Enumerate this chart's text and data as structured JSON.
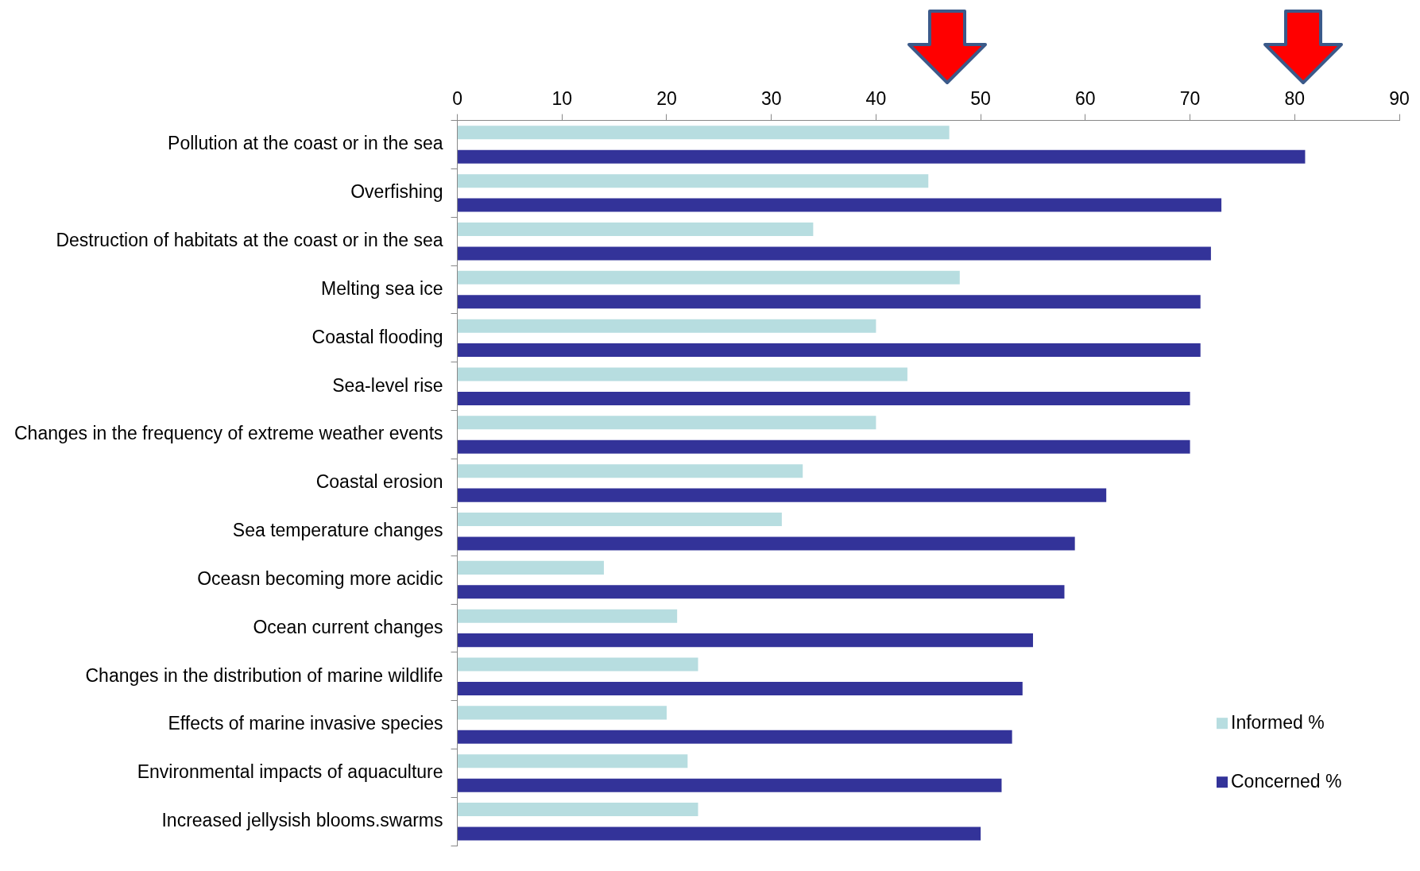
{
  "chart_data": {
    "type": "bar",
    "orientation": "horizontal",
    "categories": [
      "Pollution at the coast or in the sea",
      "Overfishing",
      "Destruction of habitats at the coast or in the sea",
      "Melting sea ice",
      "Coastal flooding",
      "Sea-level rise",
      "Changes in the frequency of extreme weather events",
      "Coastal erosion",
      "Sea temperature changes",
      "Oceasn becoming more acidic",
      "Ocean current changes",
      "Changes in the distribution of marine wildlife",
      "Effects of marine invasive species",
      "Environmental impacts of aquaculture",
      "Increased jellysish blooms.swarms"
    ],
    "series": [
      {
        "name": "Informed %",
        "color": "#b7dde0",
        "values": [
          47,
          45,
          34,
          48,
          40,
          43,
          40,
          33,
          31,
          14,
          21,
          23,
          20,
          22,
          23
        ]
      },
      {
        "name": "Concerned %",
        "color": "#333399",
        "values": [
          81,
          73,
          72,
          71,
          71,
          70,
          70,
          62,
          59,
          58,
          55,
          54,
          53,
          52,
          50
        ]
      }
    ],
    "xlim": [
      0,
      90
    ],
    "xticks": [
      0,
      10,
      20,
      30,
      40,
      50,
      60,
      70,
      80,
      90
    ],
    "grid": false,
    "legend": "bottom right"
  }
}
